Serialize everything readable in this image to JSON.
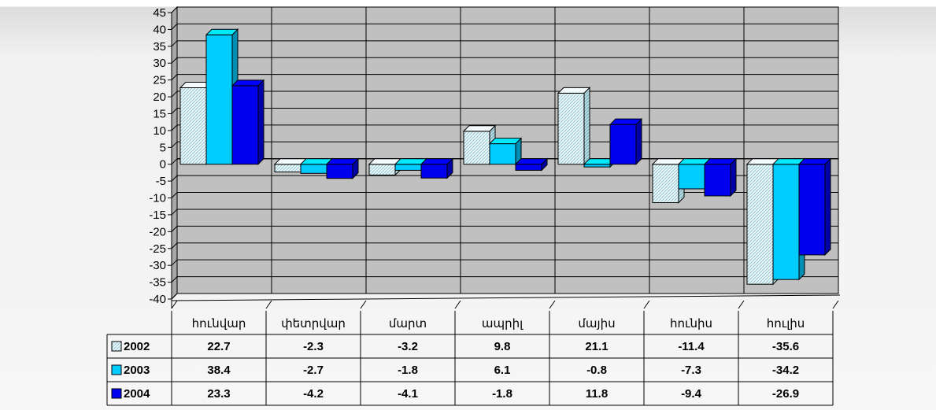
{
  "chart_data": {
    "type": "bar",
    "title": "",
    "xlabel": "",
    "ylabel": "",
    "ylim": [
      -40,
      45
    ],
    "ytick_step": 5,
    "grid": true,
    "legend_placement": "left of data table",
    "categories": [
      "հունվար",
      "փետրվար",
      "մարտ",
      "ապրիլ",
      "մայիս",
      "հունիս",
      "հուլիս"
    ],
    "series": [
      {
        "name": "2002",
        "color": "#dff3f7",
        "pattern": "light-hatched",
        "values": [
          22.7,
          -2.3,
          -3.2,
          9.8,
          21.1,
          -11.4,
          -35.6
        ]
      },
      {
        "name": "2003",
        "color": "#00ccff",
        "values": [
          38.4,
          -2.7,
          -1.8,
          6.1,
          -0.8,
          -7.3,
          -34.2
        ]
      },
      {
        "name": "2004",
        "color": "#0000ee",
        "values": [
          23.3,
          -4.2,
          -4.1,
          -1.8,
          11.8,
          -9.4,
          -26.9
        ]
      }
    ],
    "data_table": {
      "rows": [
        [
          "22.7",
          "-2.3",
          "-3.2",
          "9.8",
          "21.1",
          "-11.4",
          "-35.6"
        ],
        [
          "38.4",
          "-2.7",
          "-1.8",
          "6.1",
          "-0.8",
          "-7.3",
          "-34.2"
        ],
        [
          "23.3",
          "-4.2",
          "-4.1",
          "-1.8",
          "11.8",
          "-9.4",
          "-26.9"
        ]
      ]
    },
    "colors": {
      "plot_background": "#c0c0c0",
      "gridline": "#000000"
    }
  }
}
